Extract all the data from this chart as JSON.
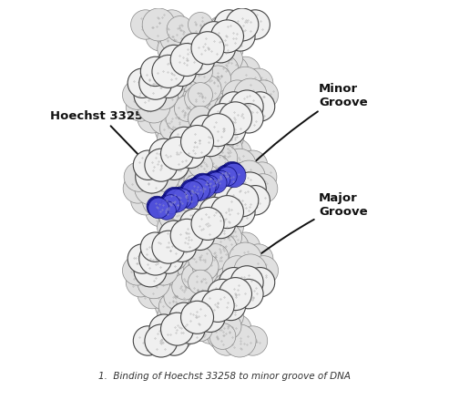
{
  "bg_color": "#ffffff",
  "dna_face_front": "#f0f0f0",
  "dna_face_back": "#e0e0e0",
  "dna_edge_front": "#444444",
  "dna_edge_back": "#888888",
  "dna_dot_color": "#999999",
  "hoechst_color_dark": "#1a1aaa",
  "hoechst_color_mid": "#3333cc",
  "hoechst_color_light": "#5555dd",
  "hoechst_edge": "#000066",
  "annotation_color": "#111111",
  "label_fontsize": 9.5,
  "caption_fontsize": 7.5,
  "minor_groove_label": "Minor\nGroove",
  "major_groove_label": "Major\nGroove",
  "hoechst_label": "Hoechst 33258",
  "caption": "1.  Binding of Hoechst 33258 to minor groove of DNA"
}
